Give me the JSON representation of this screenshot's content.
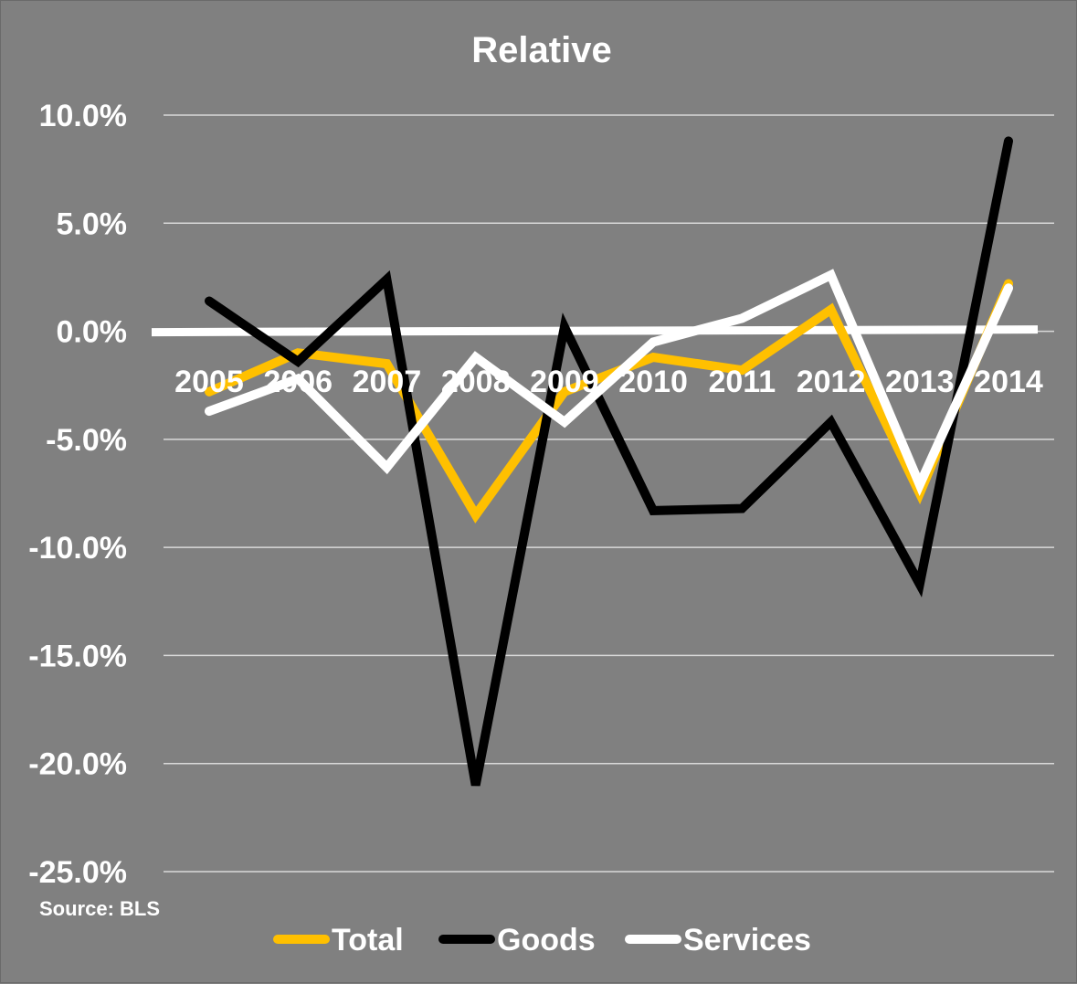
{
  "chart_data": {
    "type": "line",
    "title": "Relative",
    "source_note": "Source: BLS",
    "categories": [
      "2005",
      "2006",
      "2007",
      "2008",
      "2009",
      "2010",
      "2011",
      "2012",
      "2013",
      "2014"
    ],
    "ylim": [
      -25,
      10
    ],
    "yticks": [
      10,
      5,
      0,
      -5,
      -10,
      -15,
      -20,
      -25
    ],
    "ytick_labels": [
      "10.0%",
      "5.0%",
      "0.0%",
      "-5.0%",
      "-10.0%",
      "-15.0%",
      "-20.0%",
      "-25.0%"
    ],
    "grid": true,
    "legend_position": "bottom",
    "series": [
      {
        "name": "Total",
        "color": "#ffc000",
        "values": [
          -2.8,
          -1.0,
          -1.5,
          -8.5,
          -2.8,
          -1.2,
          -1.8,
          1.0,
          -7.5,
          2.2
        ]
      },
      {
        "name": "Goods",
        "color": "#000000",
        "values": [
          1.4,
          -1.4,
          2.4,
          -21.0,
          0.2,
          -8.3,
          -8.2,
          -4.2,
          -11.7,
          8.8
        ]
      },
      {
        "name": "Services",
        "color": "#ffffff",
        "values": [
          -3.7,
          -2.2,
          -6.3,
          -1.2,
          -4.2,
          -0.5,
          0.6,
          2.6,
          -7.1,
          2.0
        ]
      }
    ]
  }
}
